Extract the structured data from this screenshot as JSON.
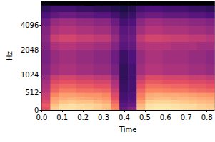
{
  "chart_data": {
    "type": "heatmap",
    "x_label": "Time",
    "y_label": "Hz",
    "xlim": [
      0,
      0.836
    ],
    "ylim": [
      0,
      8000
    ],
    "xticks": [
      {
        "value": 0,
        "label": "0.0"
      },
      0.1,
      0.2,
      0.3,
      0.4,
      0.5,
      0.6,
      0.7,
      0.8
    ],
    "yticks": [
      0,
      512,
      1024,
      2048,
      4096
    ],
    "log": "y",
    "color_range": [
      -80,
      0
    ],
    "time_bins": [
      0,
      0.0418,
      0.0836,
      0.1254,
      0.1672,
      0.209,
      0.2508,
      0.2926,
      0.3344,
      0.3762,
      0.418,
      0.4598,
      0.5016,
      0.5434,
      0.5852,
      0.627,
      0.6688,
      0.7106,
      0.7524,
      0.7942,
      0.836
    ],
    "freq_bins": [
      0,
      100,
      200,
      300,
      400,
      512,
      640,
      768,
      896,
      1024,
      1400,
      2048,
      2600,
      3200,
      4096,
      5000,
      6000,
      7200,
      8000
    ],
    "cells": [
      [
        -30,
        -8,
        -5,
        -5,
        -6,
        -6,
        -8,
        -10,
        -20,
        -55,
        -50,
        -10,
        -4,
        -3,
        -3,
        -4,
        -5,
        -6,
        -7,
        -8
      ],
      [
        -28,
        -10,
        -6,
        -5,
        -6,
        -7,
        -8,
        -10,
        -22,
        -58,
        -55,
        -12,
        -5,
        -4,
        -4,
        -5,
        -6,
        -6,
        -8,
        -9
      ],
      [
        -32,
        -14,
        -10,
        -9,
        -10,
        -10,
        -12,
        -14,
        -26,
        -60,
        -58,
        -16,
        -8,
        -7,
        -7,
        -8,
        -9,
        -10,
        -11,
        -12
      ],
      [
        -35,
        -16,
        -14,
        -13,
        -14,
        -15,
        -16,
        -18,
        -30,
        -62,
        -60,
        -20,
        -12,
        -11,
        -11,
        -12,
        -12,
        -13,
        -14,
        -15
      ],
      [
        -36,
        -20,
        -16,
        -16,
        -17,
        -18,
        -18,
        -20,
        -32,
        -62,
        -60,
        -22,
        -14,
        -13,
        -14,
        -14,
        -15,
        -16,
        -17,
        -18
      ],
      [
        -40,
        -26,
        -22,
        -22,
        -24,
        -24,
        -25,
        -26,
        -36,
        -64,
        -62,
        -26,
        -20,
        -20,
        -21,
        -22,
        -22,
        -24,
        -25,
        -26
      ],
      [
        -42,
        -28,
        -26,
        -26,
        -28,
        -28,
        -30,
        -30,
        -40,
        -64,
        -62,
        -30,
        -24,
        -24,
        -25,
        -26,
        -26,
        -28,
        -28,
        -30
      ],
      [
        -44,
        -32,
        -30,
        -30,
        -32,
        -32,
        -34,
        -34,
        -42,
        -65,
        -62,
        -34,
        -28,
        -28,
        -30,
        -30,
        -30,
        -32,
        -32,
        -34
      ],
      [
        -46,
        -36,
        -34,
        -34,
        -36,
        -36,
        -38,
        -38,
        -46,
        -66,
        -62,
        -38,
        -32,
        -32,
        -34,
        -34,
        -34,
        -36,
        -36,
        -38
      ],
      [
        -50,
        -44,
        -42,
        -42,
        -44,
        -44,
        -46,
        -46,
        -52,
        -66,
        -62,
        -44,
        -40,
        -40,
        -42,
        -42,
        -42,
        -44,
        -44,
        -46
      ],
      [
        -52,
        -46,
        -44,
        -44,
        -46,
        -46,
        -48,
        -48,
        -54,
        -64,
        -60,
        -46,
        -42,
        -42,
        -44,
        -44,
        -44,
        -46,
        -46,
        -48
      ],
      [
        -50,
        -42,
        -40,
        -40,
        -42,
        -42,
        -44,
        -44,
        -50,
        -58,
        -56,
        -42,
        -40,
        -40,
        -40,
        -42,
        -42,
        -42,
        -44,
        -44
      ],
      [
        -48,
        -36,
        -34,
        -34,
        -36,
        -36,
        -38,
        -38,
        -46,
        -56,
        -54,
        -38,
        -34,
        -34,
        -35,
        -36,
        -36,
        -38,
        -38,
        -40
      ],
      [
        -50,
        -42,
        -40,
        -40,
        -42,
        -42,
        -44,
        -44,
        -50,
        -58,
        -56,
        -44,
        -40,
        -40,
        -42,
        -42,
        -42,
        -44,
        -44,
        -46
      ],
      [
        -54,
        -46,
        -44,
        -44,
        -46,
        -46,
        -48,
        -48,
        -54,
        -62,
        -60,
        -48,
        -44,
        -44,
        -46,
        -46,
        -46,
        -48,
        -48,
        -50
      ],
      [
        -60,
        -56,
        -54,
        -54,
        -56,
        -56,
        -58,
        -58,
        -62,
        -66,
        -64,
        -56,
        -54,
        -54,
        -56,
        -56,
        -56,
        -58,
        -58,
        -60
      ],
      [
        -66,
        -62,
        -62,
        -62,
        -64,
        -64,
        -66,
        -66,
        -68,
        -70,
        -68,
        -62,
        -60,
        -60,
        -62,
        -62,
        -62,
        -64,
        -64,
        -66
      ],
      [
        -78,
        -80,
        -80,
        -80,
        -80,
        -80,
        -80,
        -80,
        -80,
        -80,
        -80,
        -80,
        -80,
        -80,
        -80,
        -80,
        -80,
        -80,
        -80,
        -80
      ]
    ]
  }
}
